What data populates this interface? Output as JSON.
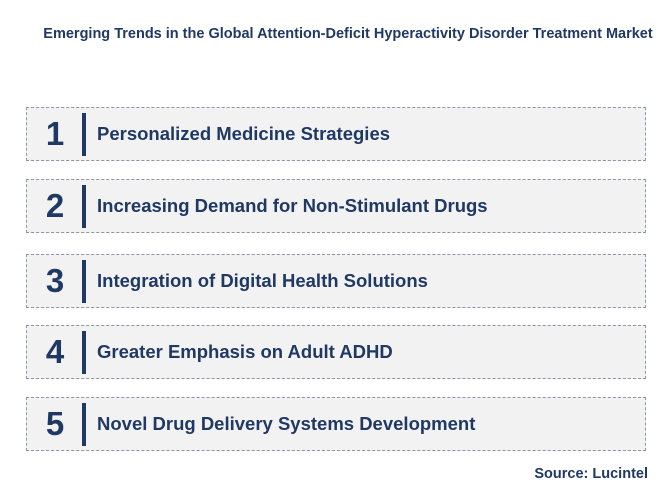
{
  "title": "Emerging Trends in the Global Attention-Deficit Hyperactivity Disorder Treatment Market",
  "trends": [
    {
      "number": "1",
      "label": "Personalized Medicine Strategies"
    },
    {
      "number": "2",
      "label": "Increasing Demand for Non-Stimulant Drugs"
    },
    {
      "number": "3",
      "label": "Integration of Digital Health Solutions"
    },
    {
      "number": "4",
      "label": "Greater Emphasis on Adult ADHD"
    },
    {
      "number": "5",
      "label": "Novel Drug Delivery Systems Development"
    }
  ],
  "source": "Source: Lucintel",
  "colors": {
    "text": "#1f3864",
    "box_background": "#f2f2f2",
    "box_border": "#8a96aa"
  }
}
